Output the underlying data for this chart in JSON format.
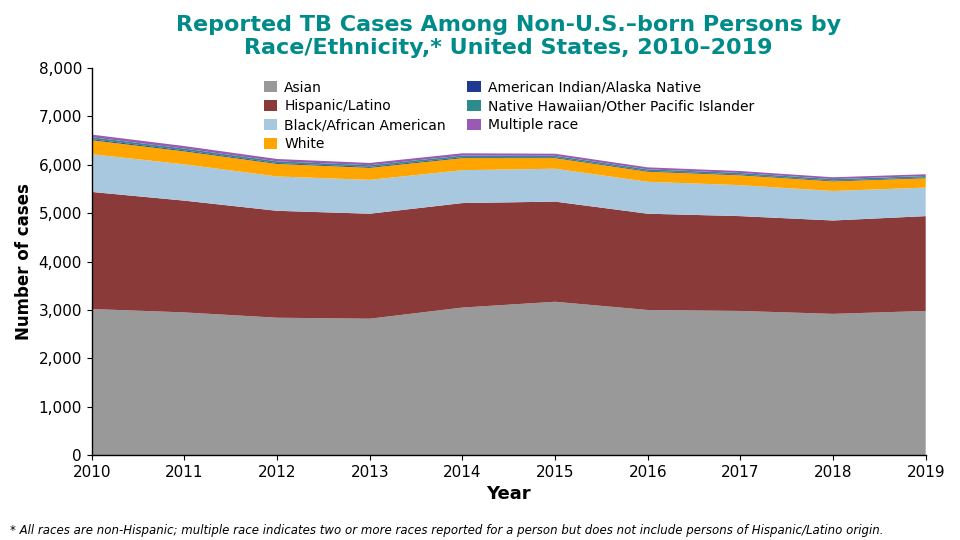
{
  "years": [
    2010,
    2011,
    2012,
    2013,
    2014,
    2015,
    2016,
    2017,
    2018,
    2019
  ],
  "asian": [
    3020,
    2950,
    2840,
    2820,
    3050,
    3170,
    3000,
    2980,
    2920,
    2980
  ],
  "hispanic": [
    2420,
    2310,
    2210,
    2170,
    2160,
    2070,
    1990,
    1960,
    1930,
    1960
  ],
  "black": [
    780,
    750,
    710,
    700,
    680,
    680,
    660,
    640,
    610,
    590
  ],
  "white": [
    290,
    270,
    260,
    250,
    250,
    220,
    210,
    205,
    200,
    195
  ],
  "ai_an": [
    20,
    18,
    17,
    17,
    17,
    15,
    15,
    15,
    14,
    14
  ],
  "nhopi": [
    40,
    38,
    36,
    35,
    35,
    32,
    32,
    32,
    31,
    30
  ],
  "multi": [
    55,
    52,
    48,
    47,
    47,
    43,
    41,
    40,
    38,
    37
  ],
  "colors": {
    "asian": "#999999",
    "hispanic": "#8B3A3A",
    "black": "#A8C8E0",
    "white": "#FFA500",
    "ai_an": "#1F3A93",
    "nhopi": "#2E8B8B",
    "multi": "#9B59B6"
  },
  "title_line1": "Reported TB Cases Among Non-U.S.–born Persons by",
  "title_line2": "Race/Ethnicity,* United States, 2010–2019",
  "xlabel": "Year",
  "ylabel": "Number of cases",
  "ylim": [
    0,
    8000
  ],
  "yticks": [
    0,
    1000,
    2000,
    3000,
    4000,
    5000,
    6000,
    7000,
    8000
  ],
  "title_color": "#008B8B",
  "footnote": "* All races are non-Hispanic; multiple race indicates two or more races reported for a person but does not include persons of Hispanic/Latino origin.",
  "legend_labels_col1": [
    "Asian",
    "Black/African American",
    "American Indian/Alaska Native",
    "Multiple race"
  ],
  "legend_labels_col2": [
    "Hispanic/Latino",
    "White",
    "Native Hawaiian/Other Pacific Islander"
  ],
  "legend_colors_col1": [
    "#999999",
    "#A8C8E0",
    "#1F3A93",
    "#9B59B6"
  ],
  "legend_colors_col2": [
    "#8B3A3A",
    "#FFA500",
    "#2E8B8B"
  ]
}
